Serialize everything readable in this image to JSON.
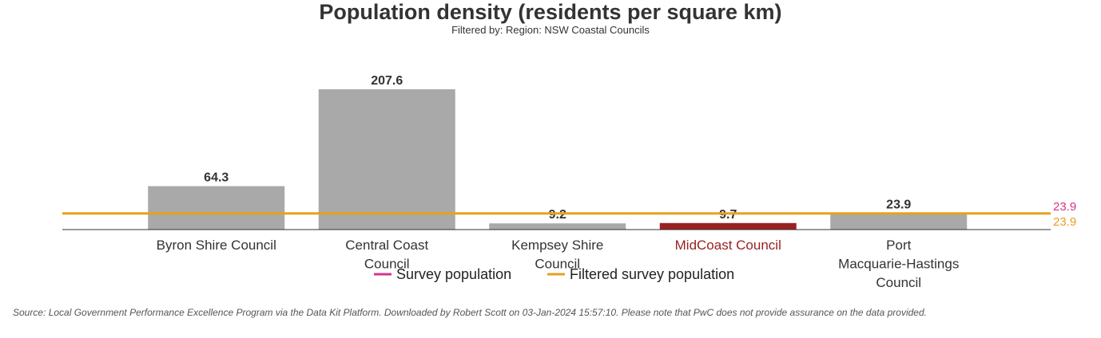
{
  "chart_data": {
    "type": "bar",
    "title": "Population density (residents per square km)",
    "subtitle": "Filtered by: Region: NSW Coastal Councils",
    "categories": [
      {
        "lines": [
          "Byron Shire Council"
        ],
        "highlight": false
      },
      {
        "lines": [
          "Central Coast",
          "Council"
        ],
        "highlight": false
      },
      {
        "lines": [
          "Kempsey Shire",
          "Council"
        ],
        "highlight": false
      },
      {
        "lines": [
          "MidCoast Council"
        ],
        "highlight": true
      },
      {
        "lines": [
          "Port",
          "Macquarie-Hastings",
          "Council"
        ],
        "highlight": false
      }
    ],
    "values": [
      64.3,
      207.6,
      9.2,
      9.7,
      23.9
    ],
    "value_labels": [
      "64.3",
      "207.6",
      "9.2",
      "9.7",
      "23.9"
    ],
    "ylim": [
      0,
      207.6
    ],
    "reference_lines": [
      {
        "name": "Survey population",
        "value": 23.9,
        "label": "23.9",
        "color": "#d6358a"
      },
      {
        "name": "Filtered survey population",
        "value": 23.9,
        "label": "23.9",
        "color": "#e8a01e"
      }
    ],
    "legend": [
      {
        "label": "Survey population",
        "color": "#d6358a"
      },
      {
        "label": "Filtered survey population",
        "color": "#e8a01e"
      }
    ],
    "colors": {
      "bar": "#a9a9a9",
      "highlight_bar": "#9b2222",
      "highlight_text": "#9b2222",
      "text": "#333333",
      "axis": "#333333"
    },
    "xlabel": "",
    "ylabel": ""
  },
  "footer": {
    "source": "Source: Local Government Performance Excellence Program via the Data Kit Platform. Downloaded by Robert Scott on 03-Jan-2024 15:57:10. Please note that PwC does not provide assurance on the data provided."
  }
}
